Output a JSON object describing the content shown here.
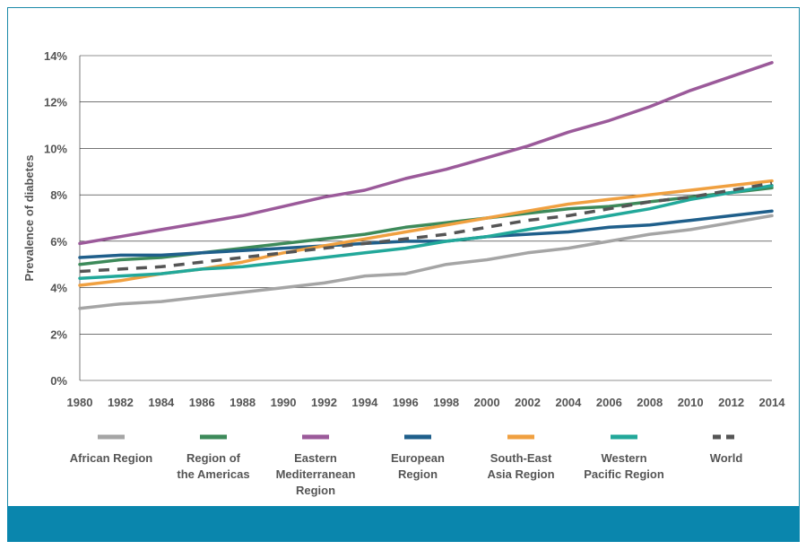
{
  "chart_data": {
    "type": "line",
    "ylabel": "Prevalence of diabetes",
    "xlabel": "",
    "ylim": [
      0,
      14
    ],
    "yticks": [
      "0%",
      "2%",
      "4%",
      "6%",
      "8%",
      "10%",
      "12%",
      "14%"
    ],
    "x": [
      "1980",
      "1982",
      "1984",
      "1986",
      "1988",
      "1990",
      "1992",
      "1994",
      "1996",
      "1998",
      "2000",
      "2002",
      "2004",
      "2006",
      "2008",
      "2010",
      "2012",
      "2014"
    ],
    "series": [
      {
        "name": "African Region",
        "color": "#a5a5a5",
        "dash": false,
        "values": [
          3.1,
          3.3,
          3.4,
          3.6,
          3.8,
          4.0,
          4.2,
          4.5,
          4.6,
          5.0,
          5.2,
          5.5,
          5.7,
          6.0,
          6.3,
          6.5,
          6.8,
          7.1
        ]
      },
      {
        "name": "Region of the Americas",
        "color": "#3d8a5a",
        "dash": false,
        "values": [
          5.0,
          5.2,
          5.3,
          5.5,
          5.7,
          5.9,
          6.1,
          6.3,
          6.6,
          6.8,
          7.0,
          7.2,
          7.4,
          7.5,
          7.7,
          7.9,
          8.1,
          8.3
        ]
      },
      {
        "name": "Eastern Mediterranean Region",
        "color": "#9b5a9a",
        "dash": false,
        "values": [
          5.9,
          6.2,
          6.5,
          6.8,
          7.1,
          7.5,
          7.9,
          8.2,
          8.7,
          9.1,
          9.6,
          10.1,
          10.7,
          11.2,
          11.8,
          12.5,
          13.1,
          13.7
        ]
      },
      {
        "name": "European Region",
        "color": "#1f5f8b",
        "dash": false,
        "values": [
          5.3,
          5.4,
          5.4,
          5.5,
          5.6,
          5.7,
          5.8,
          5.9,
          6.0,
          6.0,
          6.2,
          6.3,
          6.4,
          6.6,
          6.7,
          6.9,
          7.1,
          7.3
        ]
      },
      {
        "name": "South-East Asia Region",
        "color": "#f0a040",
        "dash": false,
        "values": [
          4.1,
          4.3,
          4.6,
          4.8,
          5.1,
          5.5,
          5.8,
          6.1,
          6.4,
          6.7,
          7.0,
          7.3,
          7.6,
          7.8,
          8.0,
          8.2,
          8.4,
          8.6
        ]
      },
      {
        "name": "Western Pacific Region",
        "color": "#22a89a",
        "dash": false,
        "values": [
          4.4,
          4.5,
          4.6,
          4.8,
          4.9,
          5.1,
          5.3,
          5.5,
          5.7,
          6.0,
          6.2,
          6.5,
          6.8,
          7.1,
          7.4,
          7.8,
          8.1,
          8.4
        ]
      },
      {
        "name": "World",
        "color": "#555555",
        "dash": true,
        "values": [
          4.7,
          4.8,
          4.9,
          5.1,
          5.3,
          5.5,
          5.7,
          5.9,
          6.1,
          6.3,
          6.6,
          6.9,
          7.1,
          7.4,
          7.7,
          7.9,
          8.2,
          8.5
        ]
      }
    ],
    "legend": [
      {
        "lines": [
          "African Region"
        ]
      },
      {
        "lines": [
          "Region of",
          "the Americas"
        ]
      },
      {
        "lines": [
          "Eastern",
          "Mediterranean",
          "Region"
        ]
      },
      {
        "lines": [
          "European",
          "Region"
        ]
      },
      {
        "lines": [
          "South-East",
          "Asia Region"
        ]
      },
      {
        "lines": [
          "Western",
          "Pacific Region"
        ]
      },
      {
        "lines": [
          "World"
        ]
      }
    ],
    "legend_position": "bottom"
  }
}
